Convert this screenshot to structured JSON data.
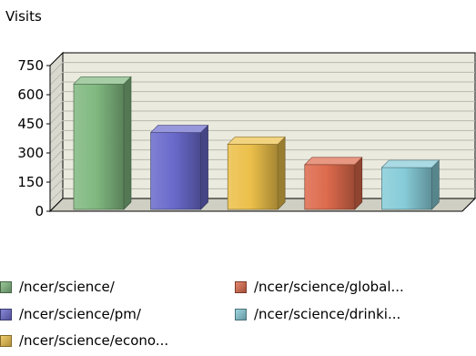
{
  "chart_data": {
    "type": "bar",
    "ylabel": "Visits",
    "ylim": [
      0,
      750
    ],
    "yticks": [
      "0",
      "150",
      "300",
      "450",
      "600",
      "750"
    ],
    "categories": [
      "/ncer/science/",
      "/ncer/science/pm/",
      "/ncer/science/econo...",
      "/ncer/science/global...",
      "/ncer/science/drinki..."
    ],
    "values": [
      655,
      405,
      345,
      240,
      225
    ],
    "colors": [
      "#80b880",
      "#6a6acc",
      "#ecc04a",
      "#dd6a4c",
      "#86ccd8"
    ],
    "grid": true,
    "legend_position": "bottom"
  }
}
